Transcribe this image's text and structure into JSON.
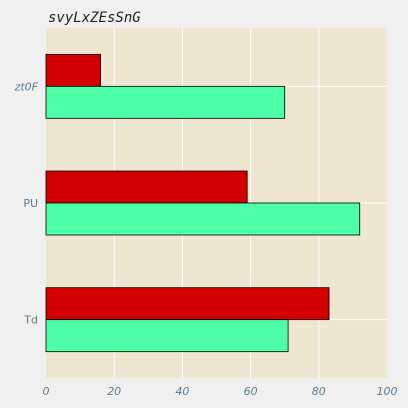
{
  "chart_data": {
    "type": "bar",
    "orientation": "horizontal",
    "title": "svyLxZEsSnG",
    "xlabel": "",
    "ylabel": "",
    "categories": [
      "zt0F",
      "PU",
      "Td"
    ],
    "series": [
      {
        "values": [
          16,
          59,
          83
        ],
        "color": "#d40000"
      },
      {
        "values": [
          70,
          92,
          71
        ],
        "color": "#4dffa6"
      }
    ],
    "xlim": [
      0,
      100
    ],
    "xticks": [
      "0",
      "20",
      "40",
      "60",
      "80",
      "100"
    ],
    "grid": true,
    "background": "#efe6d2",
    "page_background": "#f0f0f0"
  }
}
